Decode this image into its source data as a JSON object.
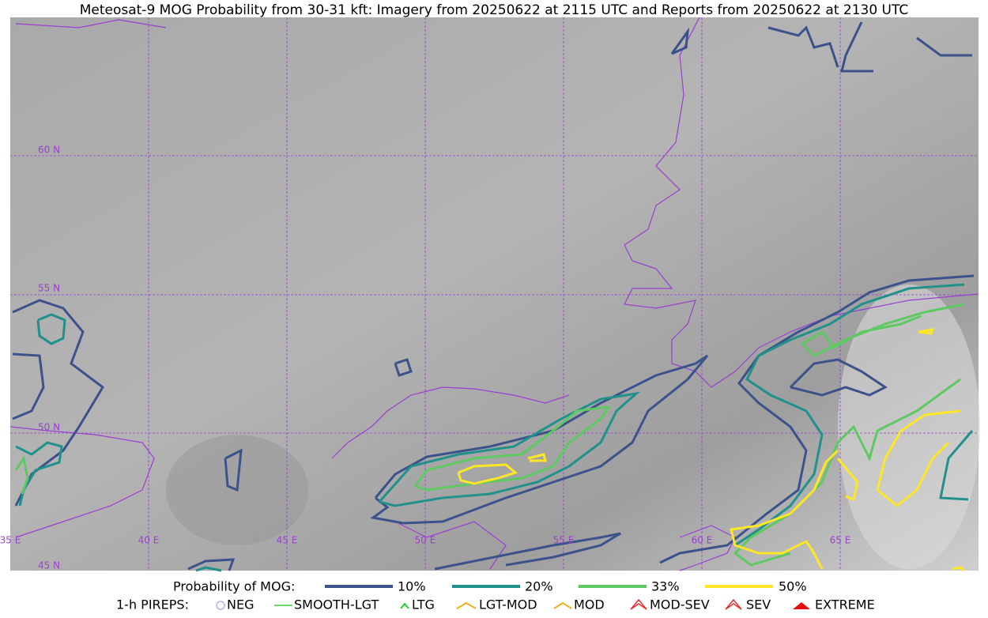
{
  "title": "Meteosat-9 MOG Probability from 30-31 kft: Imagery from 20250622 at 2115 UTC and Reports from 20250622 at 2130 UTC",
  "lat_labels": [
    "60 N",
    "55 N",
    "50 N",
    "45 N"
  ],
  "lon_labels": [
    "35 E",
    "40 E",
    "45 E",
    "50 E",
    "55 E",
    "60 E",
    "65 E"
  ],
  "legend": {
    "title": "Probability of MOG:",
    "items": [
      "10%",
      "20%",
      "33%",
      "50%"
    ]
  },
  "pireps": {
    "title": "1-h PIREPS:",
    "items": [
      "NEG",
      "SMOOTH-LGT",
      "LTG",
      "LGT-MOD",
      "MOD",
      "MOD-SEV",
      "SEV",
      "EXTREME"
    ]
  }
}
